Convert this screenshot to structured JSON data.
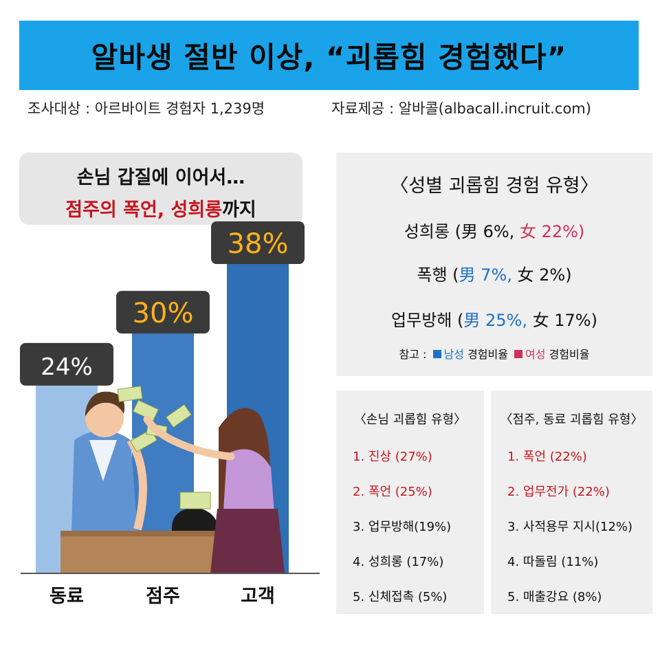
{
  "title": "알바생 절반 이상, “괴롭힘 경험했다”",
  "survey": {
    "subject": "조사대상 : 아르바이트 경험자 1,239명",
    "source": "자료제공 : 알바콜(albacall.incruit.com)"
  },
  "callout": {
    "line1_strong": "손님 갑질",
    "line1_rest": "에 이어서…",
    "line2_red": "점주의 폭언, 성희롱",
    "line2_rest": "까지"
  },
  "chart_data": {
    "type": "bar",
    "categories": [
      "동료",
      "점주",
      "고객"
    ],
    "values": [
      24,
      30,
      38
    ],
    "value_labels": [
      "24%",
      "30%",
      "38%"
    ],
    "ylim": [
      0,
      40
    ],
    "colors": [
      "#9dc1e6",
      "#3f7cc1",
      "#2e6fb5"
    ],
    "label_colors": [
      "#ffffff",
      "#ffb21a",
      "#ffb21a"
    ]
  },
  "gender_panel": {
    "title": "〈성별 괴롭힘 경험 유형〉",
    "rows": [
      {
        "label": "성희롱 (",
        "male": "男 6%,",
        "female": "女 22%)",
        "highlight": "female"
      },
      {
        "label": "폭행 (",
        "male": "男 7%,",
        "female": "女 2%)",
        "highlight": "male"
      },
      {
        "label": "업무방해 (",
        "male": "男 25%,",
        "female": "女 17%)",
        "highlight": "male"
      }
    ],
    "ref_prefix": "참고 :",
    "ref_male_word": "남성",
    "ref_male_rest": "경험비율",
    "ref_female_word": "여성",
    "ref_female_rest": "경험비율",
    "male_color": "#1e6fc8",
    "female_color": "#d2305a"
  },
  "customer_panel": {
    "title": "〈손님 괴롭힘 유형〉",
    "items": [
      "1. 진상 (27%)",
      "2. 폭언 (25%)",
      "3. 업무방해(19%)",
      "4. 성희롱 (17%)",
      "5. 신체접촉 (5%)"
    ]
  },
  "owner_panel": {
    "title": "〈점주, 동료 괴롭힘 유형〉",
    "items": [
      "1. 폭언 (22%)",
      "2. 업무전가 (22%)",
      "3. 사적용무 지시(12%)",
      "4. 따돌림 (11%)",
      "5. 매출강요 (8%)"
    ]
  }
}
